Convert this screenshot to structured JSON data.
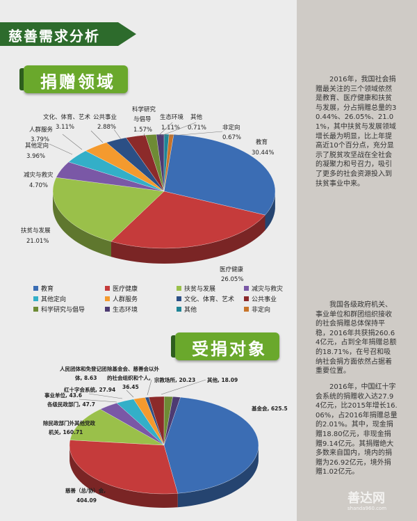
{
  "header": {
    "title": "慈善需求分析"
  },
  "sections": {
    "donation_field": "捐赠领域",
    "recipient": "受捐对象"
  },
  "chart_data": [
    {
      "type": "pie",
      "title": "捐赠领域",
      "unit": "%",
      "slices": [
        {
          "name": "教育",
          "value": 30.44,
          "label": "30.44%",
          "color": "#3b6db4"
        },
        {
          "name": "医疗健康",
          "value": 26.05,
          "label": "26.05%",
          "color": "#c53b3b"
        },
        {
          "name": "扶贫与发展",
          "value": 21.01,
          "label": "21.01%",
          "color": "#9ac04a"
        },
        {
          "name": "减灾与救灾",
          "value": 4.7,
          "label": "4.70%",
          "color": "#7a58a6"
        },
        {
          "name": "其他定向",
          "value": 3.96,
          "label": "3.96%",
          "color": "#33afc8"
        },
        {
          "name": "人群服务",
          "value": 3.79,
          "label": "3.79%",
          "color": "#f49a2e"
        },
        {
          "name": "文化、体育、艺术",
          "value": 3.11,
          "label": "3.11%",
          "color": "#2b4f85"
        },
        {
          "name": "公共事业",
          "value": 2.88,
          "label": "2.88%",
          "color": "#8c2a2a"
        },
        {
          "name": "科学研究与倡导",
          "value": 1.57,
          "label": "1.57%",
          "color": "#6e8b35"
        },
        {
          "name": "生态环境",
          "value": 1.11,
          "label": "1.11%",
          "color": "#4d3b72"
        },
        {
          "name": "其他",
          "value": 0.71,
          "label": "0.71%",
          "color": "#1f8496"
        },
        {
          "name": "非定向",
          "value": 0.67,
          "label": "0.67%",
          "color": "#c8742a"
        }
      ],
      "legend": {
        "placement": "bottom"
      },
      "label_names": {
        "edu": "教育",
        "med": "医疗健康",
        "pov": "扶贫与发展",
        "dis": "减灾与救灾",
        "oth": "其他定向",
        "ppl": "人群服务",
        "cul": "文化、体育、艺术",
        "pub": "公共事业",
        "sci1": "科学研究",
        "sci2": "与倡导",
        "eco": "生态环境",
        "other": "其他",
        "nond": "非定向"
      }
    },
    {
      "type": "pie",
      "title": "受捐对象",
      "unit": "亿元",
      "slices": [
        {
          "name": "基金会",
          "value": 625.5,
          "label": "基金会, 625.5",
          "color": "#3b6db4"
        },
        {
          "name": "慈善（总/协）会",
          "value": 404.09,
          "label": "慈善（总/协）会, 404.09",
          "color": "#c53b3b"
        },
        {
          "name": "除民政部门外其他党政机关",
          "value": 160.71,
          "label": "除民政部门外其他党政机关, 160.71",
          "color": "#9ac04a"
        },
        {
          "name": "各级民政部门",
          "value": 47.7,
          "label": "各级民政部门, 47.7",
          "color": "#7a58a6"
        },
        {
          "name": "事业单位",
          "value": 43.6,
          "label": "事业单位, 43.6",
          "color": "#33afc8"
        },
        {
          "name": "红十字会系统",
          "value": 27.94,
          "label": "红十字会系统, 27.94",
          "color": "#f49a2e"
        },
        {
          "name": "人民团体和免登记团体",
          "value": 8.63,
          "label": "人民团体和免登记团体, 8.63",
          "color": "#2b4f85"
        },
        {
          "name": "除基金会、慈善会以外的社会组织和个人",
          "value": 36.45,
          "label": "除基金会、慈善会以外的社会组织和个人, 36.45",
          "color": "#8c2a2a"
        },
        {
          "name": "宗教场所",
          "value": 20.23,
          "label": "宗教场所, 20.23",
          "color": "#6e8b35"
        },
        {
          "name": "其他",
          "value": 18.09,
          "label": "其他, 18.09",
          "color": "#4d3b72"
        }
      ],
      "label_lines": {
        "fund": "基金会, 625.5",
        "char1": "慈善（总/协）会,",
        "char2": "404.09",
        "gov1": "除民政部门外其他党政",
        "gov2": "机关, 160.71",
        "civ": "各级民政部门, 47.7",
        "inst": "事业单位, 43.6",
        "red": "红十字会系统, 27.94",
        "peo1": "人民团体和免登记团",
        "peo2": "体, 8.63",
        "soc1": "除基金会、慈善会以外",
        "soc2": "的社会组织和个人,",
        "soc3": "36.45",
        "rel": "宗教场所, 20.23",
        "oth": "其他, 18.09"
      }
    }
  ],
  "paragraphs": [
    "2016年，我国社会捐赠最关注的三个领域依然是教育、医疗健康和扶贫与发展，分占捐赠总量的30.44%、26.05%、21.01%，其中扶贫与发展领域增长最为明显，比上年提高近10个百分点，充分显示了脱贫攻坚战在全社会的凝聚力和号召力，吸引了更多的社会资源投入到扶贫事业中来。",
    "我国各级政府机关、事业单位和群团组织接收的社会捐赠总体保持平稳，2016年共获捐260.64亿元，占到全年捐赠总额的18.71%，在号召和吸纳社会捐方面依然占据着重要位置。",
    "2016年，中国红十字会系统的捐赠收入达27.94亿元，比2015年增长16.06%，占2016年捐赠总量的2.01%。其中，现金捐赠18.80亿元，非现金捐赠9.14亿元。其捐赠绝大多数来自国内，境内的捐赠为26.92亿元，境外捐赠1.02亿元。"
  ],
  "watermark": {
    "text": "善达网",
    "url": "shanda960.com"
  }
}
